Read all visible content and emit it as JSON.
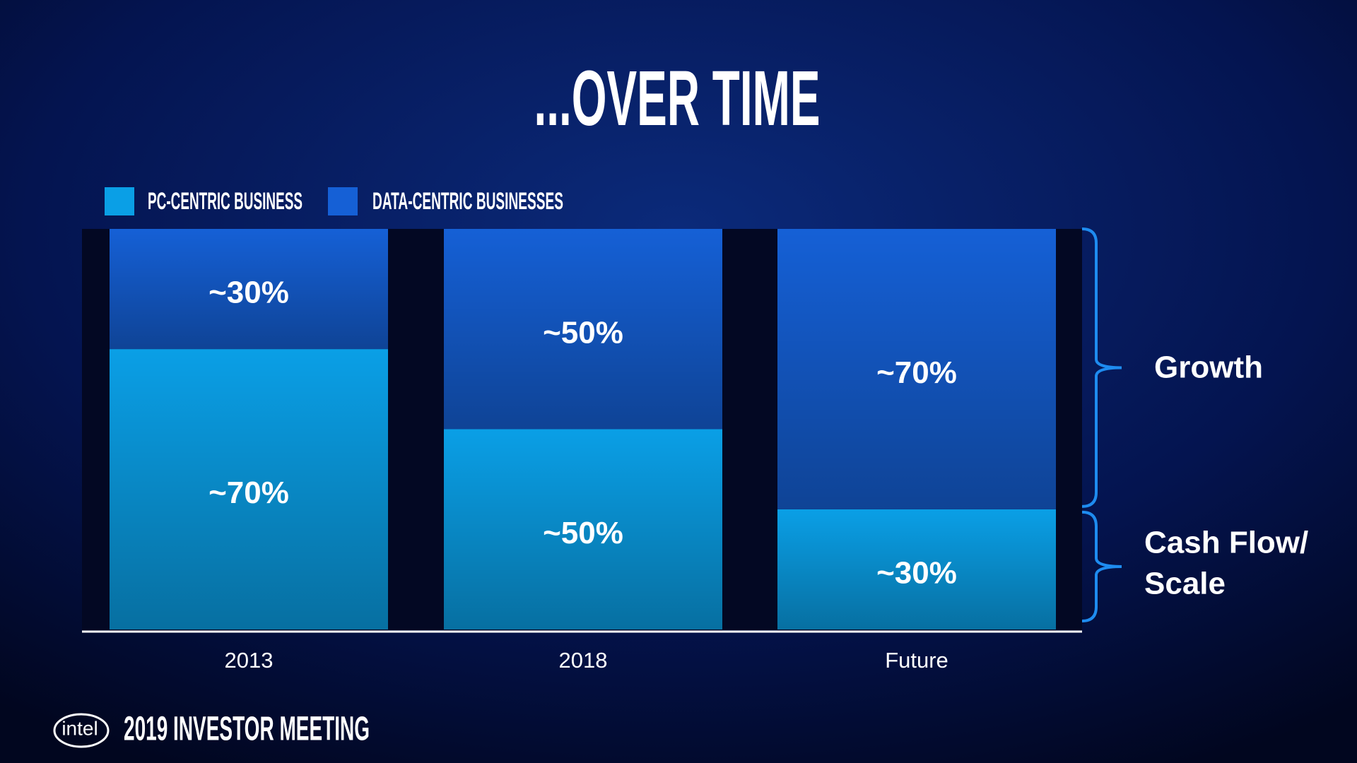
{
  "chart_data": {
    "type": "stacked_bar",
    "title": "...OVER TIME",
    "categories": [
      "2013",
      "2018",
      "Future"
    ],
    "series": [
      {
        "name": "PC-CENTRIC BUSINESS",
        "color": "#0a9fe6",
        "values": [
          70,
          50,
          30
        ],
        "value_labels": [
          "~70%",
          "~50%",
          "~30%"
        ]
      },
      {
        "name": "DATA-CENTRIC BUSINESSES",
        "color": "#1560d6",
        "values": [
          30,
          50,
          70
        ],
        "value_labels": [
          "~30%",
          "~50%",
          "~70%"
        ]
      }
    ],
    "ylim": [
      0,
      100
    ],
    "legend": "top-left",
    "annotations": [
      {
        "lines": [
          "Growth"
        ]
      },
      {
        "lines": [
          "Cash Flow/",
          "Scale"
        ]
      }
    ],
    "footer": {
      "logo": "intel",
      "event": "2019 INVESTOR MEETING"
    }
  }
}
